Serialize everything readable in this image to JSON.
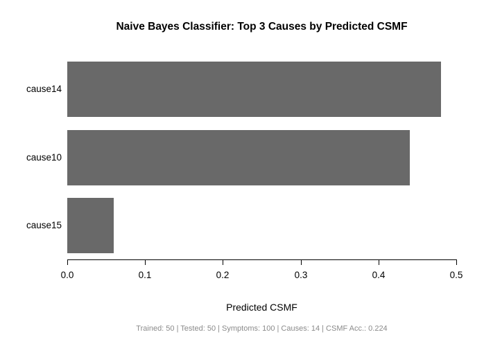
{
  "window": {
    "background": "#ffffff"
  },
  "chart_data": {
    "type": "bar",
    "orientation": "horizontal",
    "title": "Naive Bayes Classifier: Top 3 Causes by Predicted CSMF",
    "categories": [
      "cause14",
      "cause10",
      "cause15"
    ],
    "values": [
      0.48,
      0.44,
      0.06
    ],
    "xlabel": "Predicted CSMF",
    "ylabel": "",
    "xlim": [
      0,
      0.5
    ],
    "xticks": [
      0.0,
      0.1,
      0.2,
      0.3,
      0.4,
      0.5
    ],
    "xtick_labels": [
      "0.0",
      "0.1",
      "0.2",
      "0.3",
      "0.4",
      "0.5"
    ],
    "bar_color": "#696969",
    "text_color": "#000000",
    "grid": false,
    "legend": false
  },
  "footer": {
    "text": "Trained: 50 | Tested: 50 | Symptoms: 100 | Causes: 14 | CSMF Acc.: 0.224",
    "color": "#8a8a8a"
  }
}
